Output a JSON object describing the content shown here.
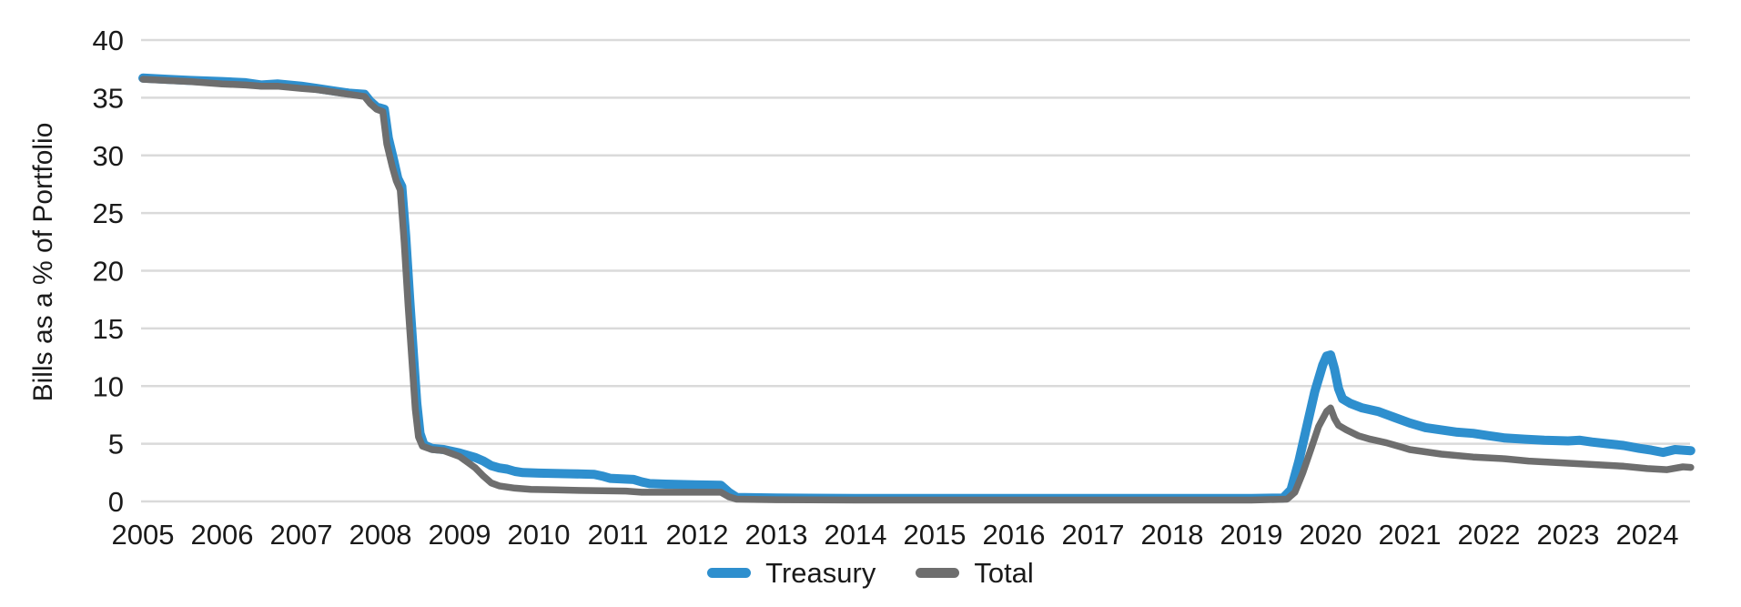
{
  "chart_data": {
    "type": "line",
    "title": "",
    "xlabel": "",
    "ylabel": "Bills as a % of Portfolio",
    "ylim": [
      0,
      40
    ],
    "yticks": [
      0,
      5,
      10,
      15,
      20,
      25,
      30,
      35,
      40
    ],
    "xlim": [
      2005,
      2024.6
    ],
    "xticks": [
      2005,
      2006,
      2007,
      2008,
      2009,
      2010,
      2011,
      2012,
      2013,
      2014,
      2015,
      2016,
      2017,
      2018,
      2019,
      2020,
      2021,
      2022,
      2023,
      2024
    ],
    "grid": "horizontal-only",
    "legend_position": "bottom-center",
    "colors": {
      "treasury": "#2E8FCE",
      "total": "#6E6E6E",
      "gridline": "#DADADA",
      "tick_text": "#1A1A1A"
    },
    "series": [
      {
        "name": "Treasury",
        "color": "#2E8FCE",
        "points": [
          [
            2005.0,
            36.7
          ],
          [
            2005.3,
            36.6
          ],
          [
            2005.6,
            36.5
          ],
          [
            2006.0,
            36.4
          ],
          [
            2006.3,
            36.3
          ],
          [
            2006.5,
            36.1
          ],
          [
            2006.7,
            36.2
          ],
          [
            2007.0,
            36.0
          ],
          [
            2007.2,
            35.8
          ],
          [
            2007.4,
            35.6
          ],
          [
            2007.6,
            35.4
          ],
          [
            2007.8,
            35.3
          ],
          [
            2007.87,
            34.7
          ],
          [
            2007.95,
            34.2
          ],
          [
            2008.05,
            34.0
          ],
          [
            2008.1,
            31.5
          ],
          [
            2008.17,
            29.5
          ],
          [
            2008.22,
            28.0
          ],
          [
            2008.27,
            27.3
          ],
          [
            2008.32,
            23.0
          ],
          [
            2008.37,
            17.5
          ],
          [
            2008.42,
            12.5
          ],
          [
            2008.46,
            8.5
          ],
          [
            2008.5,
            5.9
          ],
          [
            2008.55,
            4.9
          ],
          [
            2008.65,
            4.6
          ],
          [
            2008.8,
            4.5
          ],
          [
            2009.0,
            4.2
          ],
          [
            2009.1,
            4.0
          ],
          [
            2009.2,
            3.8
          ],
          [
            2009.3,
            3.5
          ],
          [
            2009.4,
            3.1
          ],
          [
            2009.5,
            2.9
          ],
          [
            2009.6,
            2.8
          ],
          [
            2009.7,
            2.6
          ],
          [
            2009.8,
            2.5
          ],
          [
            2010.0,
            2.45
          ],
          [
            2010.4,
            2.4
          ],
          [
            2010.7,
            2.35
          ],
          [
            2010.8,
            2.2
          ],
          [
            2010.9,
            2.0
          ],
          [
            2011.2,
            1.9
          ],
          [
            2011.3,
            1.7
          ],
          [
            2011.4,
            1.55
          ],
          [
            2011.6,
            1.5
          ],
          [
            2011.9,
            1.45
          ],
          [
            2012.3,
            1.4
          ],
          [
            2012.4,
            0.8
          ],
          [
            2012.5,
            0.35
          ],
          [
            2013.0,
            0.3
          ],
          [
            2014.0,
            0.25
          ],
          [
            2015.0,
            0.25
          ],
          [
            2016.0,
            0.25
          ],
          [
            2017.0,
            0.25
          ],
          [
            2018.0,
            0.25
          ],
          [
            2019.0,
            0.25
          ],
          [
            2019.4,
            0.3
          ],
          [
            2019.5,
            1.0
          ],
          [
            2019.6,
            3.5
          ],
          [
            2019.7,
            6.5
          ],
          [
            2019.8,
            9.5
          ],
          [
            2019.9,
            11.8
          ],
          [
            2019.95,
            12.6
          ],
          [
            2020.0,
            12.7
          ],
          [
            2020.05,
            11.5
          ],
          [
            2020.1,
            9.8
          ],
          [
            2020.15,
            8.9
          ],
          [
            2020.25,
            8.5
          ],
          [
            2020.4,
            8.1
          ],
          [
            2020.6,
            7.8
          ],
          [
            2020.8,
            7.3
          ],
          [
            2021.0,
            6.8
          ],
          [
            2021.2,
            6.4
          ],
          [
            2021.4,
            6.2
          ],
          [
            2021.6,
            6.0
          ],
          [
            2021.8,
            5.9
          ],
          [
            2022.0,
            5.7
          ],
          [
            2022.2,
            5.5
          ],
          [
            2022.45,
            5.4
          ],
          [
            2022.7,
            5.3
          ],
          [
            2023.0,
            5.25
          ],
          [
            2023.15,
            5.3
          ],
          [
            2023.3,
            5.15
          ],
          [
            2023.5,
            5.0
          ],
          [
            2023.7,
            4.85
          ],
          [
            2023.9,
            4.6
          ],
          [
            2024.05,
            4.45
          ],
          [
            2024.2,
            4.25
          ],
          [
            2024.35,
            4.5
          ],
          [
            2024.55,
            4.4
          ]
        ]
      },
      {
        "name": "Total",
        "color": "#6E6E6E",
        "points": [
          [
            2005.0,
            36.6
          ],
          [
            2005.3,
            36.5
          ],
          [
            2005.6,
            36.4
          ],
          [
            2006.0,
            36.2
          ],
          [
            2006.3,
            36.1
          ],
          [
            2006.5,
            36.0
          ],
          [
            2006.7,
            36.0
          ],
          [
            2007.0,
            35.8
          ],
          [
            2007.2,
            35.7
          ],
          [
            2007.4,
            35.5
          ],
          [
            2007.6,
            35.3
          ],
          [
            2007.8,
            35.1
          ],
          [
            2007.87,
            34.5
          ],
          [
            2007.95,
            34.0
          ],
          [
            2008.03,
            33.8
          ],
          [
            2008.08,
            31.0
          ],
          [
            2008.15,
            29.0
          ],
          [
            2008.2,
            27.8
          ],
          [
            2008.25,
            27.0
          ],
          [
            2008.3,
            22.5
          ],
          [
            2008.35,
            17.0
          ],
          [
            2008.4,
            12.0
          ],
          [
            2008.44,
            8.0
          ],
          [
            2008.48,
            5.6
          ],
          [
            2008.53,
            4.8
          ],
          [
            2008.65,
            4.5
          ],
          [
            2008.8,
            4.4
          ],
          [
            2009.0,
            3.9
          ],
          [
            2009.1,
            3.4
          ],
          [
            2009.2,
            2.9
          ],
          [
            2009.3,
            2.2
          ],
          [
            2009.4,
            1.6
          ],
          [
            2009.5,
            1.35
          ],
          [
            2009.7,
            1.15
          ],
          [
            2009.9,
            1.05
          ],
          [
            2010.2,
            1.0
          ],
          [
            2010.6,
            0.95
          ],
          [
            2011.1,
            0.9
          ],
          [
            2011.3,
            0.8
          ],
          [
            2012.3,
            0.8
          ],
          [
            2012.4,
            0.4
          ],
          [
            2012.5,
            0.2
          ],
          [
            2013.0,
            0.15
          ],
          [
            2014.0,
            0.12
          ],
          [
            2015.0,
            0.12
          ],
          [
            2016.0,
            0.12
          ],
          [
            2017.0,
            0.12
          ],
          [
            2018.0,
            0.12
          ],
          [
            2019.0,
            0.12
          ],
          [
            2019.45,
            0.2
          ],
          [
            2019.55,
            0.8
          ],
          [
            2019.65,
            2.5
          ],
          [
            2019.75,
            4.5
          ],
          [
            2019.85,
            6.5
          ],
          [
            2019.95,
            7.8
          ],
          [
            2020.0,
            8.1
          ],
          [
            2020.05,
            7.2
          ],
          [
            2020.1,
            6.6
          ],
          [
            2020.2,
            6.2
          ],
          [
            2020.35,
            5.7
          ],
          [
            2020.5,
            5.4
          ],
          [
            2020.7,
            5.1
          ],
          [
            2020.9,
            4.7
          ],
          [
            2021.0,
            4.5
          ],
          [
            2021.2,
            4.3
          ],
          [
            2021.4,
            4.1
          ],
          [
            2021.8,
            3.85
          ],
          [
            2022.2,
            3.7
          ],
          [
            2022.5,
            3.5
          ],
          [
            2022.9,
            3.35
          ],
          [
            2023.3,
            3.2
          ],
          [
            2023.7,
            3.05
          ],
          [
            2024.0,
            2.85
          ],
          [
            2024.25,
            2.75
          ],
          [
            2024.45,
            3.0
          ],
          [
            2024.55,
            2.95
          ]
        ]
      }
    ]
  }
}
